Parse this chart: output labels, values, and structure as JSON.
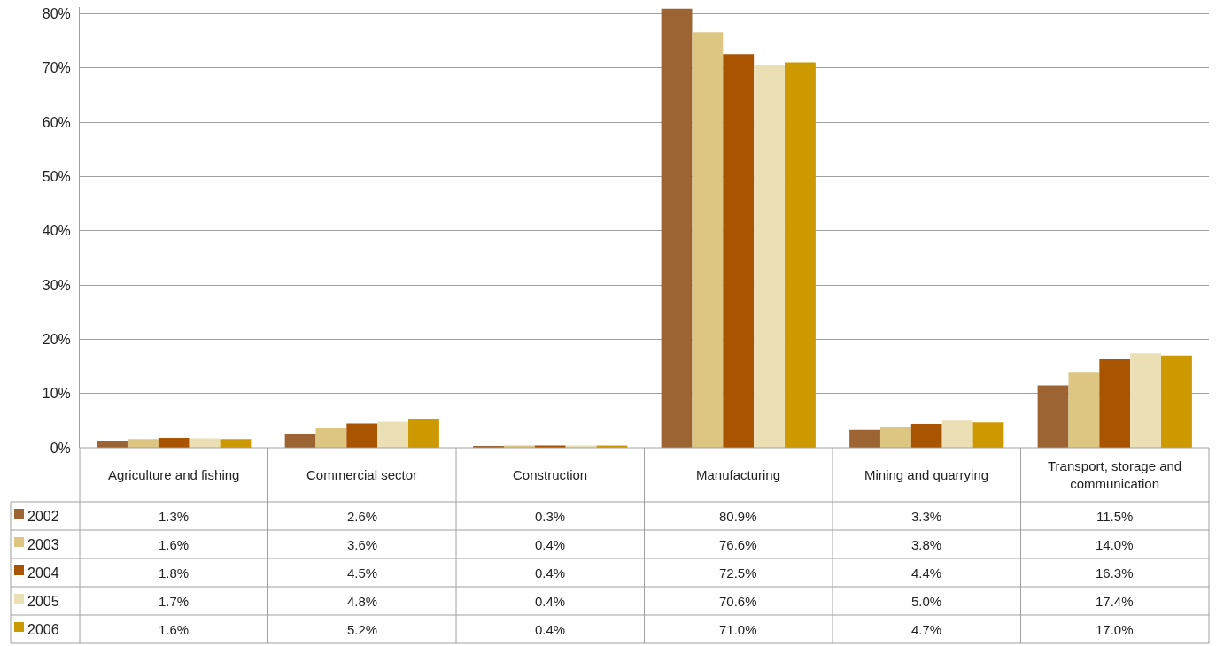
{
  "chart_data": {
    "type": "bar",
    "categories": [
      "Agriculture and fishing",
      "Commercial sector",
      "Construction",
      "Manufacturing",
      "Mining and quarrying",
      "Transport, storage and communication"
    ],
    "series": [
      {
        "name": "2002",
        "color": "#9c6433",
        "values": [
          1.3,
          2.6,
          0.3,
          80.9,
          3.3,
          11.5
        ],
        "value_labels": [
          "1.3%",
          "2.6%",
          "0.3%",
          "80.9%",
          "3.3%",
          "11.5%"
        ]
      },
      {
        "name": "2003",
        "color": "#dcc682",
        "values": [
          1.6,
          3.6,
          0.4,
          76.6,
          3.8,
          14.0
        ],
        "value_labels": [
          "1.6%",
          "3.6%",
          "0.4%",
          "76.6%",
          "3.8%",
          "14.0%"
        ]
      },
      {
        "name": "2004",
        "color": "#a85400",
        "values": [
          1.8,
          4.5,
          0.4,
          72.5,
          4.4,
          16.3
        ],
        "value_labels": [
          "1.8%",
          "4.5%",
          "0.4%",
          "72.5%",
          "4.4%",
          "16.3%"
        ]
      },
      {
        "name": "2005",
        "color": "#ebdfb5",
        "values": [
          1.7,
          4.8,
          0.4,
          70.6,
          5.0,
          17.4
        ],
        "value_labels": [
          "1.7%",
          "4.8%",
          "0.4%",
          "70.6%",
          "5.0%",
          "17.4%"
        ]
      },
      {
        "name": "2006",
        "color": "#cc9900",
        "values": [
          1.6,
          5.2,
          0.4,
          71.0,
          4.7,
          17.0
        ],
        "value_labels": [
          "1.6%",
          "5.2%",
          "0.4%",
          "71.0%",
          "4.7%",
          "17.0%"
        ]
      }
    ],
    "ylim": [
      0,
      81.2
    ],
    "yticks": [
      {
        "value": 0,
        "label": "0%"
      },
      {
        "value": 10,
        "label": "10%"
      },
      {
        "value": 20,
        "label": "20%"
      },
      {
        "value": 30,
        "label": "30%"
      },
      {
        "value": 40,
        "label": "40%"
      },
      {
        "value": 50,
        "label": "50%"
      },
      {
        "value": 60,
        "label": "60%"
      },
      {
        "value": 70,
        "label": "70%"
      },
      {
        "value": 80,
        "label": "80%"
      }
    ],
    "grid": "y",
    "legend": "bottom left"
  }
}
